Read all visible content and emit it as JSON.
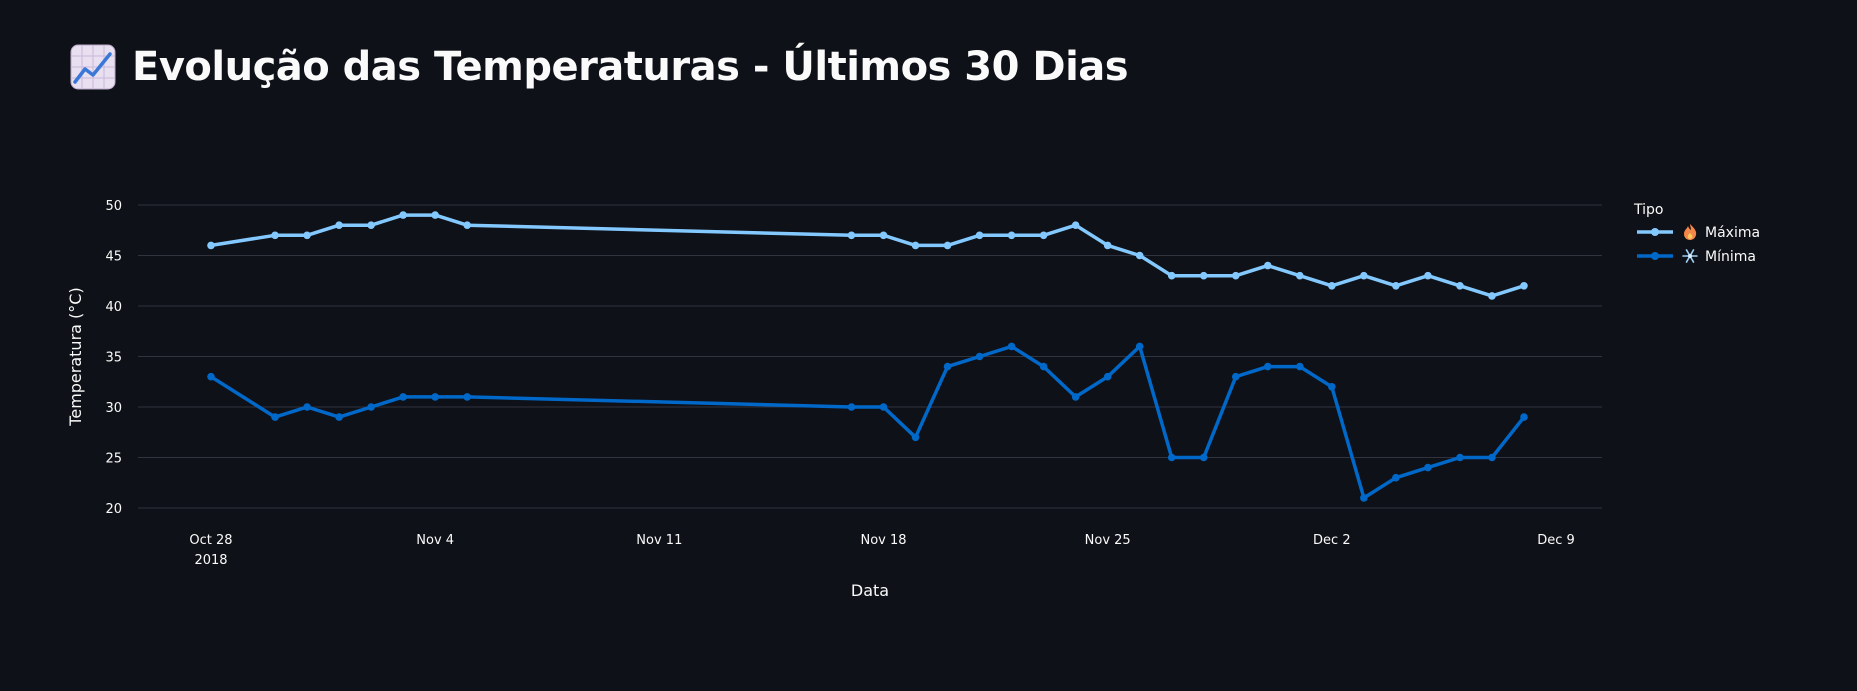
{
  "header": {
    "title": "Evolução das Temperaturas - Últimos 30 Dias",
    "icon": "chart-increasing-icon"
  },
  "colors": {
    "background": "#0e1117",
    "max_series": "#83c9ff",
    "min_series": "#0068c9",
    "grid": "#31333f",
    "text": "#fafafa"
  },
  "chart_data": {
    "type": "line",
    "xlabel": "Data",
    "ylabel": "Temperatura (°C)",
    "ylim": [
      20,
      50
    ],
    "yticks": [
      20,
      25,
      30,
      35,
      40,
      45,
      50
    ],
    "xticks": [
      {
        "date": "2018-10-28",
        "label": "Oct 28",
        "sublabel": "2018"
      },
      {
        "date": "2018-11-04",
        "label": "Nov 4",
        "sublabel": ""
      },
      {
        "date": "2018-11-11",
        "label": "Nov 11",
        "sublabel": ""
      },
      {
        "date": "2018-11-18",
        "label": "Nov 18",
        "sublabel": ""
      },
      {
        "date": "2018-11-25",
        "label": "Nov 25",
        "sublabel": ""
      },
      {
        "date": "2018-12-02",
        "label": "Dec 2",
        "sublabel": ""
      },
      {
        "date": "2018-12-09",
        "label": "Dec 9",
        "sublabel": ""
      }
    ],
    "grid": true,
    "legend": {
      "title": "Tipo",
      "placement": "top-right"
    },
    "x": [
      "2018-10-28",
      "2018-10-30",
      "2018-10-31",
      "2018-11-01",
      "2018-11-02",
      "2018-11-03",
      "2018-11-04",
      "2018-11-05",
      "2018-11-17",
      "2018-11-18",
      "2018-11-19",
      "2018-11-20",
      "2018-11-21",
      "2018-11-22",
      "2018-11-23",
      "2018-11-24",
      "2018-11-25",
      "2018-11-26",
      "2018-11-27",
      "2018-11-28",
      "2018-11-29",
      "2018-11-30",
      "2018-12-01",
      "2018-12-02",
      "2018-12-03",
      "2018-12-04",
      "2018-12-05",
      "2018-12-06",
      "2018-12-07",
      "2018-12-08"
    ],
    "series": [
      {
        "name": "Máxima",
        "emoji": "fire-icon",
        "values": [
          46,
          47,
          47,
          48,
          48,
          49,
          49,
          48,
          47,
          47,
          46,
          46,
          47,
          47,
          47,
          48,
          46,
          45,
          43,
          43,
          43,
          44,
          43,
          42,
          43,
          42,
          43,
          42,
          41,
          42
        ]
      },
      {
        "name": "Mínima",
        "emoji": "snowflake-icon",
        "values": [
          33,
          29,
          30,
          29,
          30,
          31,
          31,
          31,
          30,
          30,
          27,
          34,
          35,
          36,
          34,
          31,
          33,
          36,
          25,
          25,
          33,
          34,
          34,
          32,
          21,
          23,
          24,
          25,
          25,
          29
        ]
      }
    ]
  }
}
